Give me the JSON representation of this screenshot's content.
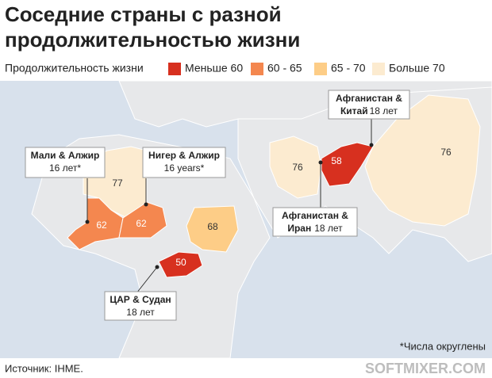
{
  "title_lines": [
    "Соседние страны с разной",
    "продолжительностью жизни"
  ],
  "legend": {
    "label": "Продолжительность жизни",
    "items": [
      {
        "label": "Меньше 60",
        "color": "#d7301f"
      },
      {
        "label": "60 - 65",
        "color": "#f4874f"
      },
      {
        "label": "65 - 70",
        "color": "#fdcd87"
      },
      {
        "label": "Больше 70",
        "color": "#fcebd0"
      }
    ]
  },
  "regions": [
    {
      "value": 77,
      "color": "#fcebd0"
    },
    {
      "value": 62,
      "color": "#f4874f"
    },
    {
      "value": 62,
      "color": "#f4874f"
    },
    {
      "value": 68,
      "color": "#fdcd87"
    },
    {
      "value": 50,
      "color": "#d7301f"
    },
    {
      "value": 76,
      "color": "#fcebd0"
    },
    {
      "value": 58,
      "color": "#d7301f"
    },
    {
      "value": 76,
      "color": "#fcebd0"
    }
  ],
  "callouts": [
    {
      "title": "Мали & Алжир",
      "note": "16 лет*"
    },
    {
      "title": "Нигер & Алжир",
      "note": "16 years*"
    },
    {
      "title": "ЦАР & Судан",
      "note": "18 лет"
    },
    {
      "title": "Афганистан &",
      "title2": "Иран",
      "note": "18 лет"
    },
    {
      "title": "Афганистан &",
      "title2": "Китай",
      "note": "18 лет"
    }
  ],
  "footnote": "*Числа округлены",
  "source": "Источник: IHME.",
  "watermark": "SOFTMIXER.COM"
}
